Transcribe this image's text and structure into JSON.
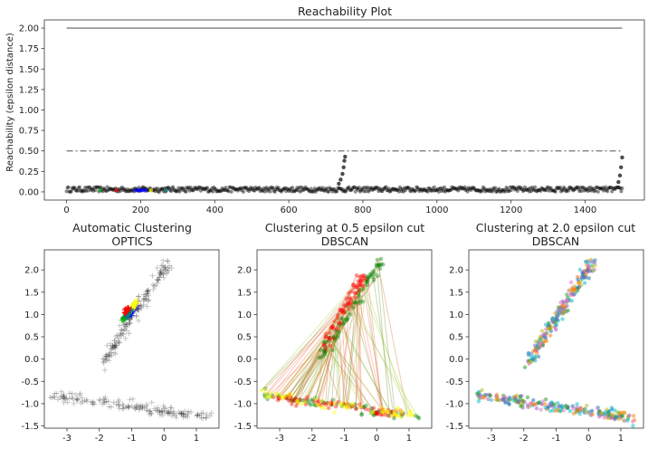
{
  "chart_data": [
    {
      "type": "scatter",
      "title": "Reachability Plot",
      "xlabel": "",
      "ylabel": "Reachability (epsilon distance)",
      "xlim": [
        -60,
        1560
      ],
      "ylim": [
        -0.1,
        2.1
      ],
      "xticks": [
        0,
        200,
        400,
        600,
        800,
        1000,
        1200,
        1400
      ],
      "yticks": [
        0.0,
        0.25,
        0.5,
        0.75,
        1.0,
        1.25,
        1.5,
        1.75,
        2.0
      ],
      "ytick_labels": [
        "0.00",
        "0.25",
        "0.50",
        "0.75",
        "1.00",
        "1.25",
        "1.50",
        "1.75",
        "2.00"
      ],
      "reference_lines": [
        {
          "y": 2.0,
          "style": "solid",
          "color": "#7f7f7f"
        },
        {
          "y": 0.5,
          "style": "dashdot",
          "color": "#7f7f7f"
        }
      ],
      "series": [
        {
          "color": "#000000",
          "x_range": [
            0,
            1500
          ],
          "y_range": [
            0.0,
            0.06
          ]
        },
        {
          "color": "#000000",
          "x": [
            735,
            740,
            745,
            748,
            750,
            752
          ],
          "y": [
            0.1,
            0.15,
            0.22,
            0.3,
            0.38,
            0.43
          ]
        },
        {
          "color": "#000000",
          "x": [
            1490,
            1494,
            1497,
            1500
          ],
          "y": [
            0.12,
            0.2,
            0.3,
            0.42
          ]
        },
        {
          "color": "#ff0000",
          "x": [
            135
          ],
          "y": [
            0.02
          ]
        },
        {
          "color": "#0000ff",
          "x_range": [
            185,
            215
          ],
          "y_range": [
            0.01,
            0.03
          ]
        },
        {
          "color": "#ffff00",
          "x": [
            228
          ],
          "y": [
            0.02
          ]
        },
        {
          "color": "#008080",
          "x": [
            270
          ],
          "y": [
            0.02
          ]
        },
        {
          "color": "#00aa00",
          "x": [
            90
          ],
          "y": [
            0.02
          ]
        }
      ]
    },
    {
      "type": "scatter",
      "title": "Automatic Clustering\nOPTICS",
      "title_lines": [
        "Automatic Clustering",
        "OPTICS"
      ],
      "xlim": [
        -3.7,
        1.7
      ],
      "ylim": [
        -1.55,
        2.45
      ],
      "xticks": [
        -3,
        -2,
        -1,
        0,
        1
      ],
      "yticks": [
        -1.5,
        -1.0,
        -0.5,
        0.0,
        0.5,
        1.0,
        1.5,
        2.0
      ],
      "ytick_labels": [
        "-1.5",
        "-1.0",
        "-0.5",
        "0.0",
        "0.5",
        "1.0",
        "1.5",
        "2.0"
      ],
      "marker": "+",
      "clusters": [
        {
          "label": "noise",
          "color": "#000000",
          "shape": "line",
          "start": [
            -1.9,
            -0.1
          ],
          "end": [
            0.15,
            2.2
          ],
          "spread": 0.12
        },
        {
          "label": "noise",
          "color": "#000000",
          "shape": "line",
          "start": [
            -3.5,
            -0.8
          ],
          "end": [
            1.35,
            -1.3
          ],
          "spread": 0.1
        },
        {
          "label": "cluster",
          "color": "#0000ff",
          "shape": "line",
          "start": [
            -1.15,
            0.9
          ],
          "end": [
            -0.85,
            1.2
          ],
          "spread": 0.05
        },
        {
          "label": "cluster",
          "color": "#ffff00",
          "shape": "line",
          "start": [
            -1.0,
            1.1
          ],
          "end": [
            -0.85,
            1.3
          ],
          "spread": 0.04
        },
        {
          "label": "cluster",
          "color": "#00aa00",
          "shape": "line",
          "start": [
            -1.3,
            0.85
          ],
          "end": [
            -1.1,
            1.05
          ],
          "spread": 0.04
        },
        {
          "label": "cluster",
          "color": "#008080",
          "shape": "line",
          "start": [
            -1.2,
            0.95
          ],
          "end": [
            -1.05,
            1.1
          ],
          "spread": 0.04
        },
        {
          "label": "cluster",
          "color": "#ff0000",
          "shape": "line",
          "start": [
            -1.25,
            1.0
          ],
          "end": [
            -1.1,
            1.15
          ],
          "spread": 0.03
        }
      ]
    },
    {
      "type": "scatter",
      "title": "Clustering at 0.5 epsilon cut\nDBSCAN",
      "title_lines": [
        "Clustering at 0.5 epsilon cut",
        "DBSCAN"
      ],
      "xlim": [
        -3.7,
        1.7
      ],
      "ylim": [
        -1.55,
        2.45
      ],
      "xticks": [
        -3,
        -2,
        -1,
        0,
        1
      ],
      "yticks": [
        -1.5,
        -1.0,
        -0.5,
        0.0,
        0.5,
        1.0,
        1.5,
        2.0
      ],
      "ytick_labels": [
        "-1.5",
        "-1.0",
        "-0.5",
        "0.0",
        "0.5",
        "1.0",
        "1.5",
        "2.0"
      ],
      "clusters": [
        {
          "color": "#008000",
          "shape": "line",
          "start": [
            -1.9,
            -0.1
          ],
          "end": [
            0.15,
            2.2
          ],
          "spread": 0.12
        },
        {
          "color": "#ff0000",
          "shape": "line",
          "start": [
            -1.6,
            0.3
          ],
          "end": [
            -0.4,
            1.9
          ],
          "spread": 0.1
        },
        {
          "color": "#008000",
          "shape": "line",
          "start": [
            -3.5,
            -0.8
          ],
          "end": [
            1.35,
            -1.3
          ],
          "spread": 0.1
        },
        {
          "color": "#ff0000",
          "shape": "line",
          "start": [
            -3.2,
            -0.85
          ],
          "end": [
            0.9,
            -1.25
          ],
          "spread": 0.08
        },
        {
          "color": "#ffff00",
          "shape": "line",
          "start": [
            -3.5,
            -0.8
          ],
          "end": [
            1.35,
            -1.3
          ],
          "spread": 0.1
        }
      ],
      "line_colors": [
        "#ff6347",
        "#6b8e23",
        "#d2691e",
        "#9acd32"
      ]
    },
    {
      "type": "scatter",
      "title": "Clustering at 2.0 epsilon cut\nDBSCAN",
      "title_lines": [
        "Clustering at 2.0 epsilon cut",
        "DBSCAN"
      ],
      "xlim": [
        -3.7,
        1.7
      ],
      "ylim": [
        -1.55,
        2.45
      ],
      "xticks": [
        -3,
        -2,
        -1,
        0,
        1
      ],
      "yticks": [
        -1.5,
        -1.0,
        -0.5,
        0.0,
        0.5,
        1.0,
        1.5,
        2.0
      ],
      "ytick_labels": [
        "-1.5",
        "-1.0",
        "-0.5",
        "0.0",
        "0.5",
        "1.0",
        "1.5",
        "2.0"
      ],
      "palette": [
        "#17becf",
        "#e377c2",
        "#bcbd22",
        "#1f77b4",
        "#9467bd",
        "#2ca02c",
        "#ff7f0e"
      ],
      "clusters": [
        {
          "shape": "line",
          "start": [
            -1.9,
            -0.1
          ],
          "end": [
            0.15,
            2.2
          ],
          "spread": 0.12
        },
        {
          "shape": "line",
          "start": [
            -3.5,
            -0.8
          ],
          "end": [
            1.35,
            -1.3
          ],
          "spread": 0.1
        }
      ]
    }
  ]
}
